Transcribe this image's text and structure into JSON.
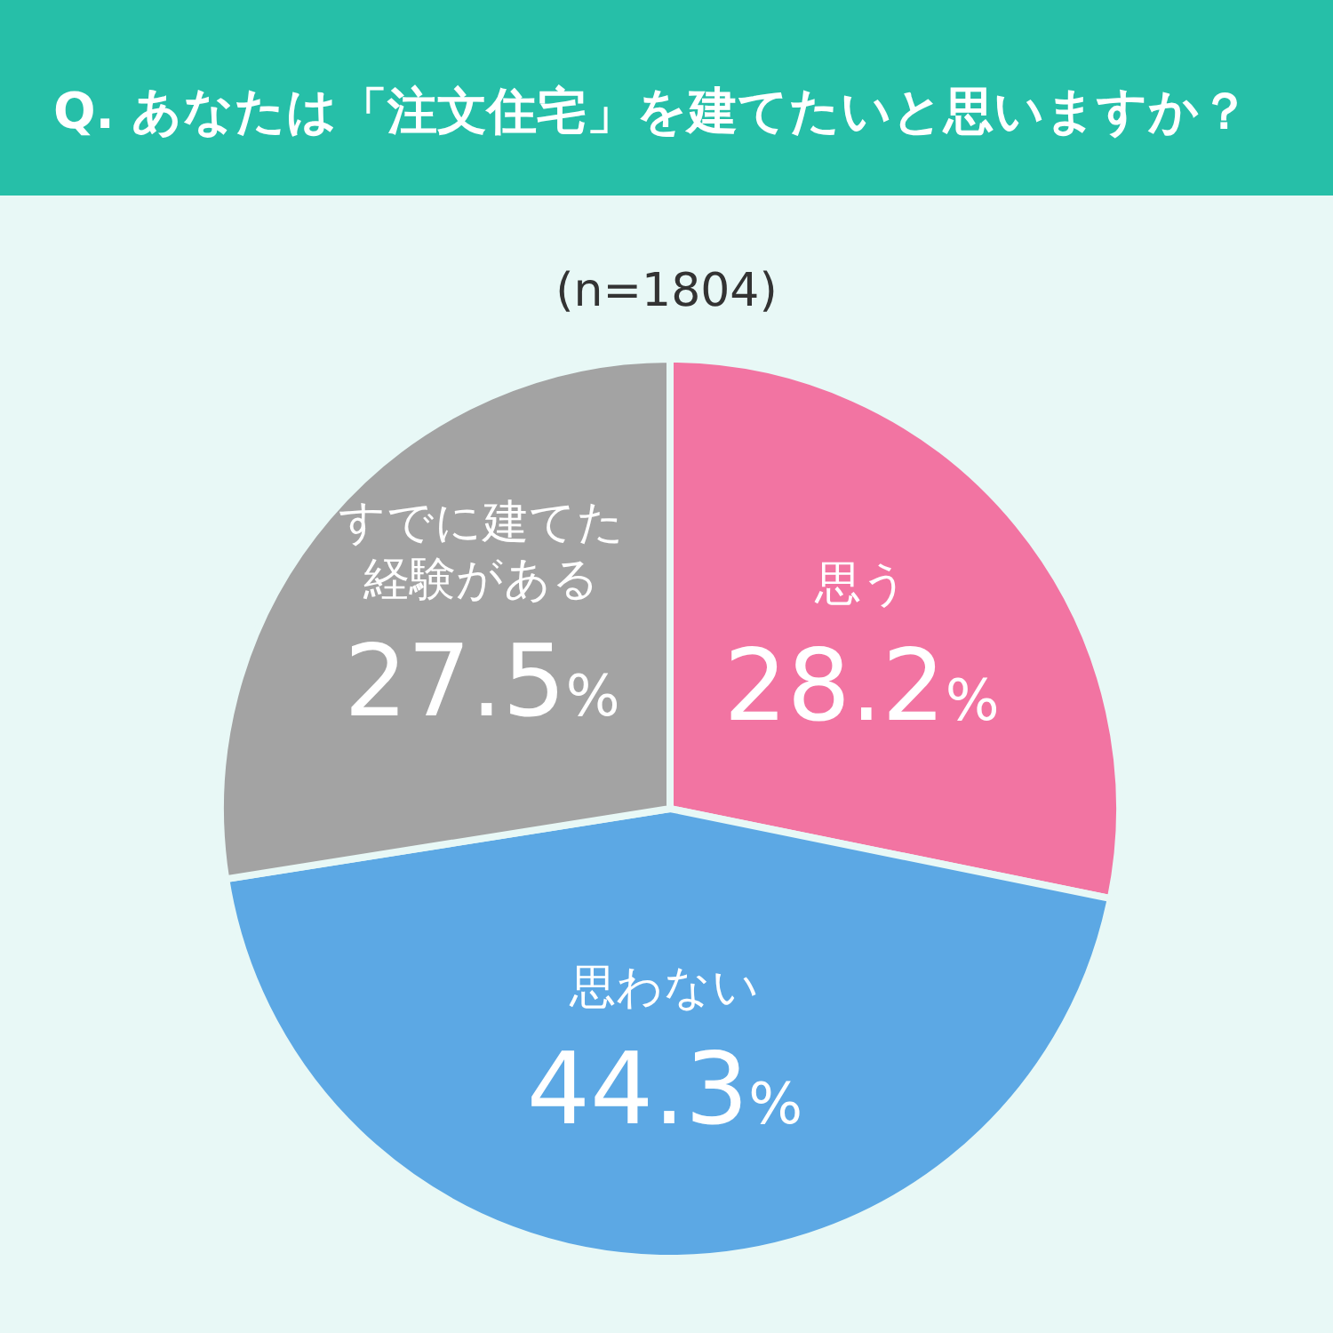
{
  "chart_data": {
    "type": "pie",
    "title": "Q. あなたは「注文住宅」を建てたいと思いますか？",
    "subtitle": "(n=1804)",
    "categories": [
      "思う",
      "思わない",
      "すでに建てた経験がある"
    ],
    "values": [
      28.2,
      44.3,
      27.5
    ],
    "value_labels": [
      "28.2%",
      "44.3%",
      "27.5%"
    ],
    "colors": [
      "#f274a2",
      "#5ca8e4",
      "#a3a3a3"
    ],
    "legend": false
  }
}
